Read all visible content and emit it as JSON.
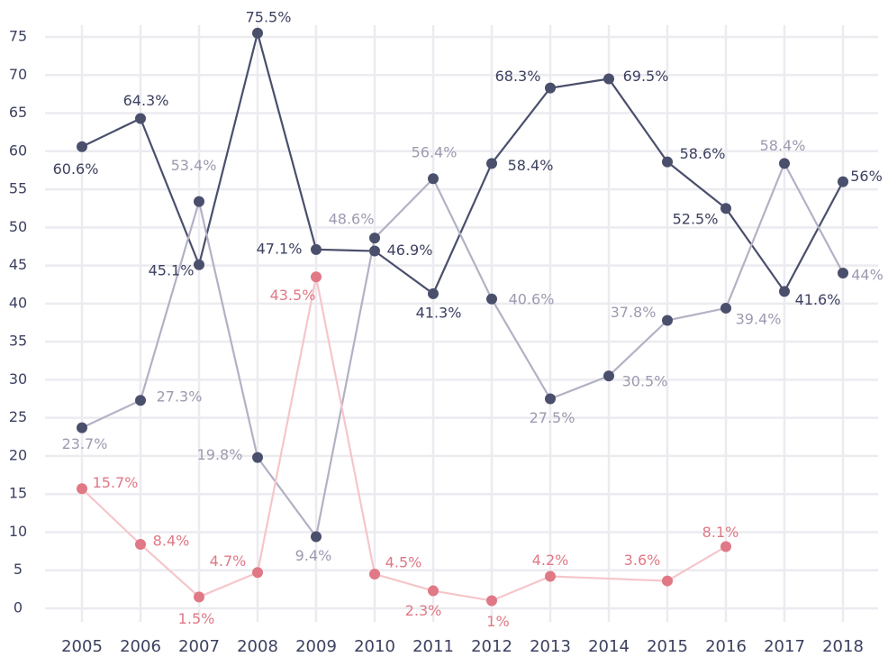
{
  "chart_data": {
    "type": "line",
    "xlim": [
      2005,
      2018
    ],
    "xticks": [
      2005,
      2006,
      2007,
      2008,
      2009,
      2010,
      2011,
      2012,
      2013,
      2014,
      2015,
      2016,
      2017,
      2018
    ],
    "ylim": [
      0,
      75
    ],
    "yticks": [
      0,
      5,
      10,
      15,
      20,
      25,
      30,
      35,
      40,
      45,
      50,
      55,
      60,
      65,
      70,
      75
    ],
    "grid": true,
    "series": [
      {
        "color": "#4a4f6c",
        "marker_color": "#4a4f6c",
        "x": [
          2005,
          2006,
          2007,
          2008,
          2009,
          2010,
          2011,
          2012,
          2013,
          2014,
          2015,
          2016,
          2017,
          2018
        ],
        "values": [
          60.6,
          64.3,
          45.1,
          75.5,
          47.1,
          46.9,
          41.3,
          58.4,
          68.3,
          69.5,
          58.6,
          52.5,
          41.6,
          56
        ],
        "value_labels": [
          "60.6%",
          "64.3%",
          "45.1%",
          "75.5%",
          "47.1%",
          "46.9%",
          "41.3%",
          "58.4%",
          "68.3%",
          "69.5%",
          "58.6%",
          "52.5%",
          "41.6%",
          "56%"
        ]
      },
      {
        "color": "#b3b1c4",
        "marker_color": "#4a4f6c",
        "x": [
          2005,
          2006,
          2007,
          2008,
          2009,
          2010,
          2011,
          2012,
          2013,
          2014,
          2015,
          2016,
          2017,
          2018
        ],
        "values": [
          23.7,
          27.3,
          53.4,
          19.8,
          9.4,
          48.6,
          56.4,
          40.6,
          27.5,
          30.5,
          37.8,
          39.4,
          58.4,
          44
        ],
        "value_labels": [
          "23.7%",
          "27.3%",
          "53.4%",
          "19.8%",
          "9.4%",
          "48.6%",
          "56.4%",
          "40.6%",
          "27.5%",
          "30.5%",
          "37.8%",
          "39.4%",
          "58.4%",
          "44%"
        ]
      },
      {
        "color": "#f5c6ca",
        "marker_color": "#e07886",
        "x": [
          2005,
          2006,
          2007,
          2008,
          2009,
          2010,
          2011,
          2012,
          2013,
          2015,
          2016
        ],
        "values": [
          15.7,
          8.4,
          1.5,
          4.7,
          43.5,
          4.5,
          2.3,
          1,
          4.2,
          3.6,
          8.1
        ],
        "value_labels": [
          "15.7%",
          "8.4%",
          "1.5%",
          "4.7%",
          "43.5%",
          "4.5%",
          "2.3%",
          "1%",
          "4.2%",
          "3.6%",
          "8.1%"
        ]
      }
    ]
  }
}
